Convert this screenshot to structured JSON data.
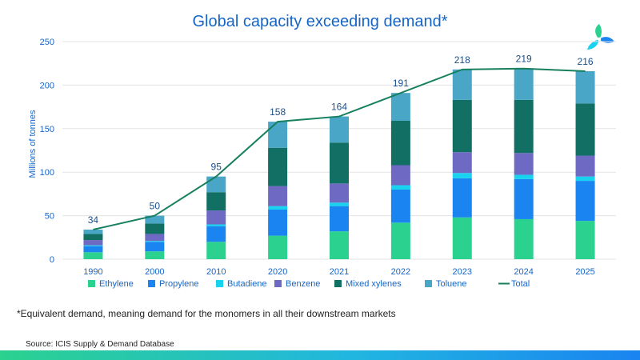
{
  "title": "Global capacity exceeding demand*",
  "footnote": "*Equivalent demand, meaning demand for the monomers in all their downstream markets",
  "source": "Source: ICIS Supply & Demand Database",
  "chart_data": {
    "type": "bar",
    "stacked": true,
    "title": "Global capacity exceeding demand*",
    "ylabel": "Millions of tonnes",
    "xlabel": "",
    "ylim": [
      0,
      250
    ],
    "yticks": [
      0,
      50,
      100,
      150,
      200,
      250
    ],
    "grid": true,
    "legend_position": "bottom",
    "categories": [
      "1990",
      "2000",
      "2010",
      "2020",
      "2021",
      "2022",
      "2023",
      "2024",
      "2025"
    ],
    "series": [
      {
        "name": "Ethylene",
        "color": "#2bd18f",
        "values": [
          8,
          9,
          20,
          27,
          32,
          42,
          48,
          46,
          44
        ]
      },
      {
        "name": "Propylene",
        "color": "#1a84f0",
        "values": [
          7,
          11,
          18,
          30,
          29,
          38,
          45,
          46,
          46
        ]
      },
      {
        "name": "Butadiene",
        "color": "#18d3f0",
        "values": [
          1,
          1,
          2,
          4,
          4,
          5,
          6,
          5,
          5
        ]
      },
      {
        "name": "Benzene",
        "color": "#6e6ac4",
        "values": [
          6,
          8,
          16,
          23,
          22,
          23,
          24,
          25,
          24
        ]
      },
      {
        "name": "Mixed xylenes",
        "color": "#116f64",
        "values": [
          7,
          12,
          21,
          44,
          47,
          51,
          60,
          61,
          60
        ]
      },
      {
        "name": "Toluene",
        "color": "#4aa6c6",
        "values": [
          5,
          9,
          18,
          30,
          30,
          32,
          35,
          36,
          37
        ]
      }
    ],
    "total": {
      "name": "Total",
      "color": "#17805f",
      "values": [
        34,
        50,
        95,
        158,
        164,
        191,
        218,
        219,
        216
      ]
    }
  }
}
